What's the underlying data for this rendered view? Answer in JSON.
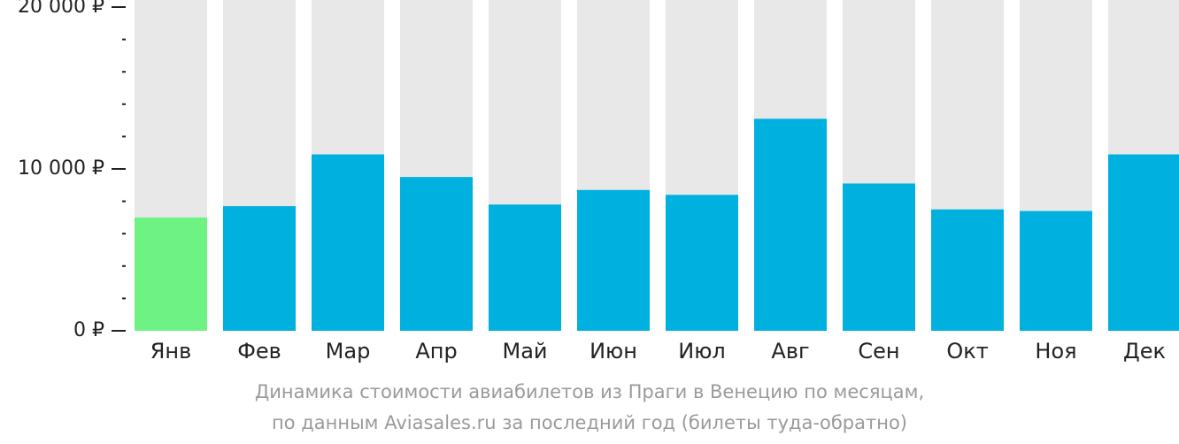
{
  "chart_data": {
    "type": "bar",
    "categories": [
      "Янв",
      "Фев",
      "Мар",
      "Апр",
      "Май",
      "Июн",
      "Июл",
      "Авг",
      "Сен",
      "Окт",
      "Ноя",
      "Дек"
    ],
    "values": [
      7000,
      7700,
      10900,
      9500,
      7800,
      8700,
      8400,
      13100,
      9100,
      7500,
      7400,
      10900
    ],
    "highlight_index": 0,
    "ylim": [
      0,
      20000
    ],
    "y_ticks": [
      {
        "value": 0,
        "label": "0 ₽"
      },
      {
        "value": 10000,
        "label": "10 000 ₽"
      },
      {
        "value": 20000,
        "label": "20 000 ₽"
      }
    ],
    "minor_tick_step": 2000,
    "xlabel": "",
    "ylabel": "",
    "colors": {
      "bar": "#00b0de",
      "highlight": "#6ef283",
      "background_bar": "#e8e8e8",
      "axis": "#222222",
      "caption": "#9a9a9a"
    }
  },
  "caption": {
    "line1": "Динамика стоимости авиабилетов из Праги в Венецию по месяцам,",
    "line2": "по данным Aviasales.ru за последний год (билеты туда-обратно)"
  }
}
